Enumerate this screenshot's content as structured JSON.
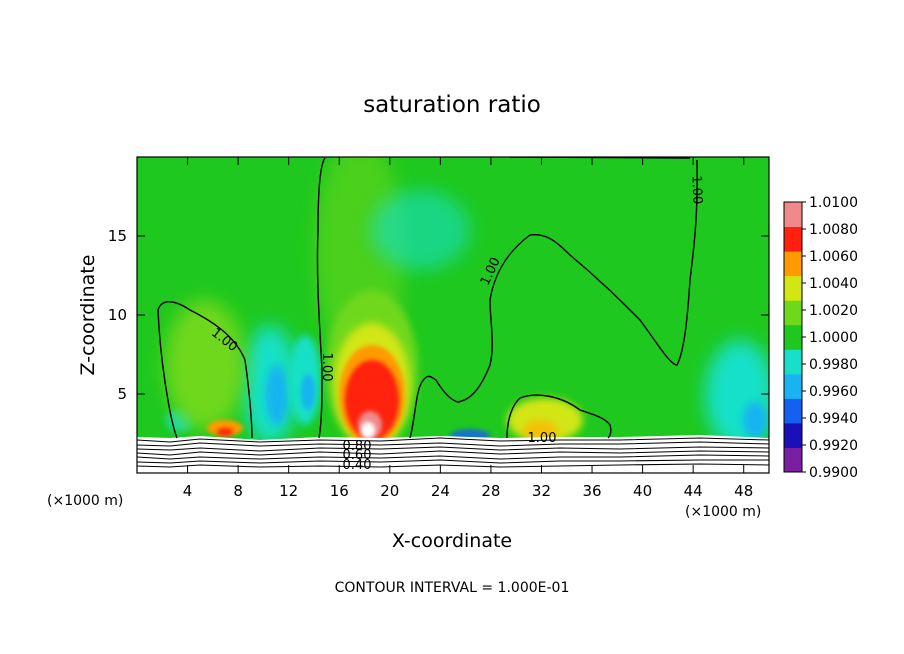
{
  "chart_data": {
    "type": "heatmap",
    "title": "saturation ratio",
    "xlabel": "X-coordinate",
    "ylabel": "Z-coordinate",
    "x_unit_left": "(×1000 m)",
    "x_unit_right": "(×1000 m)",
    "footer": "CONTOUR INTERVAL = 1.000E-01",
    "xlim": [
      0,
      50
    ],
    "ylim": [
      0,
      20
    ],
    "x_ticks": [
      4,
      8,
      12,
      16,
      20,
      24,
      28,
      32,
      36,
      40,
      44,
      48
    ],
    "y_ticks": [
      5,
      10,
      15
    ],
    "colorbar": {
      "levels": [
        0.99,
        0.992,
        0.994,
        0.996,
        0.998,
        1.0,
        1.002,
        1.004,
        1.006,
        1.008,
        1.01
      ],
      "labels": [
        "1.0100",
        "1.0080",
        "1.0060",
        "1.0040",
        "1.0020",
        "1.0000",
        "0.9980",
        "0.9960",
        "0.9940",
        "0.9920",
        "0.9900"
      ],
      "colors": [
        "#7a1fa2",
        "#1b10b8",
        "#1560f0",
        "#19b4f0",
        "#18e0c8",
        "#1ec81e",
        "#6fd81c",
        "#d2e614",
        "#ff9a00",
        "#ff2010",
        "#f08a8a"
      ]
    },
    "contour_labels": [
      "1.00",
      "1.00",
      "1.00",
      "1.00",
      "1.00",
      "0.80",
      "0.60",
      "0.40"
    ],
    "features": [
      {
        "name": "high saturation core",
        "x": 18.5,
        "z": 4.5,
        "value": 1.008
      },
      {
        "name": "secondary maximum",
        "x": 7.0,
        "z": 2.2,
        "value": 1.006
      },
      {
        "name": "subsaturated column",
        "x": 11.5,
        "z": 5.0,
        "value": 0.996
      },
      {
        "name": "subsaturated column",
        "x": 14.5,
        "z": 5.0,
        "value": 0.996
      },
      {
        "name": "moist patch",
        "x": 32.0,
        "z": 3.0,
        "value": 1.003
      },
      {
        "name": "subsaturated band",
        "x": 47.0,
        "z": 5.0,
        "value": 0.997
      }
    ]
  }
}
